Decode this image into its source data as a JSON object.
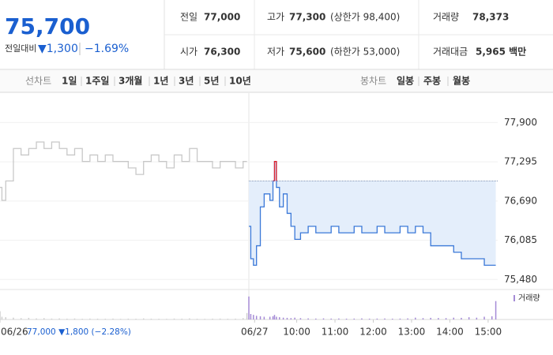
{
  "header": {
    "price": "75,700",
    "change_caption": "전일대비",
    "change": "▼1,300",
    "change_pct": "−1.69%",
    "stats": [
      {
        "label": "전일",
        "value": "77,000"
      },
      {
        "label": "고가",
        "value": "77,300",
        "extra": "(상한가 98,400)"
      },
      {
        "label": "거래량",
        "value": "78,373"
      },
      {
        "label": "시가",
        "value": "76,300"
      },
      {
        "label": "저가",
        "value": "75,600",
        "extra": "(하한가 53,000)"
      },
      {
        "label": "거래대금",
        "value": "5,965 백만"
      }
    ]
  },
  "tabs": {
    "line_caption": "선차트",
    "periods": [
      "1일",
      "1주일",
      "3개월",
      "1년",
      "3년",
      "5년",
      "10년"
    ],
    "candle_caption": "봉차트",
    "candles": [
      "일봉",
      "주봉",
      "월봉"
    ]
  },
  "chart_data": {
    "type": "line",
    "ylim": [
      75350,
      78330
    ],
    "yticks": [
      {
        "value": 77900,
        "label": "77,900"
      },
      {
        "value": 77295,
        "label": "77,295"
      },
      {
        "value": 76690,
        "label": "76,690"
      },
      {
        "value": 76085,
        "label": "76,085"
      },
      {
        "value": 75480,
        "label": "75,480"
      }
    ],
    "xlim": [
      2.25,
      15.25
    ],
    "xticks": [
      {
        "value": 2.25,
        "label": "06/26"
      },
      {
        "value": 8.9,
        "label": "06/27"
      },
      {
        "value": 10,
        "label": "10:00"
      },
      {
        "value": 11,
        "label": "11:00"
      },
      {
        "value": 12,
        "label": "12:00"
      },
      {
        "value": 13,
        "label": "13:00"
      },
      {
        "value": 14,
        "label": "14:00"
      },
      {
        "value": 15,
        "label": "15:00"
      }
    ],
    "prev_day": {
      "value": 77000,
      "label": "77,000 ▼1,800 (−2.28%)"
    },
    "volume_name": "거래량",
    "vlim": [
      0,
      3000
    ],
    "series": [
      {
        "color": "#c8c8c8",
        "volume_color": "#cfcfcf",
        "x": [
          2.25,
          2.3,
          2.4,
          2.6,
          2.8,
          3.0,
          3.2,
          3.4,
          3.6,
          3.8,
          4.0,
          4.2,
          4.4,
          4.6,
          4.8,
          5.0,
          5.2,
          5.4,
          5.6,
          5.8,
          6.0,
          6.2,
          6.4,
          6.6,
          6.8,
          7.0,
          7.2,
          7.4,
          7.6,
          7.8,
          8.0,
          8.2,
          8.4,
          8.6,
          8.7
        ],
        "values": [
          76900,
          76700,
          77000,
          77500,
          77400,
          77500,
          77600,
          77500,
          77600,
          77500,
          77400,
          77500,
          77300,
          77400,
          77300,
          77400,
          77300,
          77300,
          77200,
          77100,
          77300,
          77400,
          77300,
          77200,
          77400,
          77300,
          77500,
          77300,
          77300,
          77200,
          77300,
          77300,
          77200,
          77300,
          77300
        ],
        "volume": [
          900,
          300,
          250,
          200,
          150,
          180,
          120,
          150,
          100,
          120,
          90,
          110,
          80,
          100,
          90,
          80,
          100,
          70,
          90,
          80,
          120,
          90,
          80,
          70,
          100,
          90,
          120,
          80,
          70,
          90,
          100,
          80,
          90,
          150,
          700
        ]
      },
      {
        "color": "#3a78d8",
        "up_color": "#e0202a",
        "fill": "#e4eefb",
        "volume_color": "#a58bd6",
        "x": [
          8.75,
          8.8,
          8.87,
          8.95,
          9.05,
          9.15,
          9.3,
          9.38,
          9.42,
          9.47,
          9.55,
          9.65,
          9.75,
          9.85,
          9.95,
          10.1,
          10.3,
          10.5,
          10.7,
          10.9,
          11.1,
          11.3,
          11.5,
          11.7,
          11.9,
          12.1,
          12.3,
          12.5,
          12.7,
          12.9,
          13.1,
          13.3,
          13.5,
          13.7,
          13.9,
          14.1,
          14.3,
          14.5,
          14.7,
          14.9,
          15.1,
          15.2
        ],
        "values": [
          76300,
          75800,
          75700,
          76000,
          76600,
          76800,
          76700,
          77000,
          77300,
          76900,
          76600,
          76800,
          76500,
          76300,
          76100,
          76200,
          76300,
          76200,
          76200,
          76300,
          76200,
          76200,
          76300,
          76200,
          76200,
          76300,
          76200,
          76200,
          76300,
          76200,
          76300,
          76200,
          76000,
          76000,
          76000,
          75900,
          75800,
          75800,
          75800,
          75700,
          75700,
          75700
        ],
        "volume": [
          2500,
          600,
          500,
          400,
          350,
          300,
          300,
          350,
          500,
          300,
          250,
          200,
          180,
          150,
          200,
          150,
          120,
          100,
          120,
          100,
          110,
          90,
          100,
          120,
          90,
          100,
          110,
          90,
          100,
          120,
          200,
          150,
          180,
          160,
          150,
          200,
          180,
          250,
          200,
          300,
          350,
          2000
        ]
      }
    ]
  }
}
